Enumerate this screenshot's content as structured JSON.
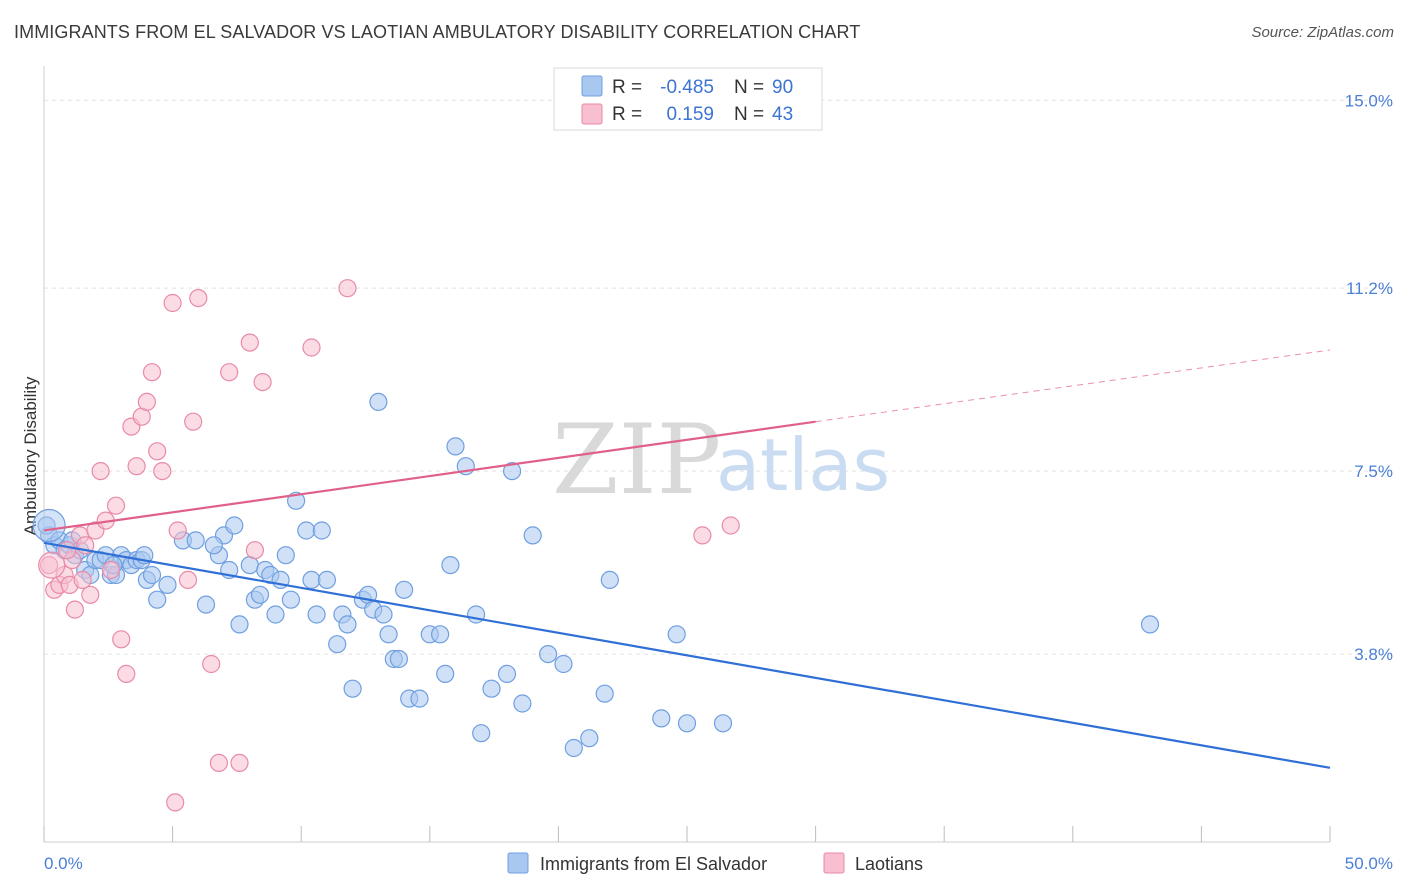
{
  "header": {
    "title": "IMMIGRANTS FROM EL SALVADOR VS LAOTIAN AMBULATORY DISABILITY CORRELATION CHART",
    "source": "Source: ZipAtlas.com"
  },
  "watermark": {
    "part1": "ZIP",
    "part2": "atlas"
  },
  "legend": {
    "rows": [
      {
        "r_label": "R =",
        "r_value": "-0.485",
        "n_label": "N =",
        "n_value": "90",
        "color": "#a9c8f0",
        "stroke": "#6f9fe0"
      },
      {
        "r_label": "R =",
        "r_value": "0.159",
        "n_label": "N =",
        "n_value": "43",
        "color": "#f7bfd0",
        "stroke": "#e98aa8"
      }
    ]
  },
  "bottom_legend": {
    "items": [
      {
        "label": "Immigrants from El Salvador",
        "color": "#a9c8f0",
        "stroke": "#6f9fe0"
      },
      {
        "label": "Laotians",
        "color": "#f7bfd0",
        "stroke": "#e98aa8"
      }
    ]
  },
  "chart_data": {
    "type": "scatter",
    "xlabel": "",
    "ylabel": "Ambulatory Disability",
    "xlim": [
      0,
      50
    ],
    "ylim": [
      0,
      15.45
    ],
    "x_tick_labels": [
      "0.0%",
      "50.0%"
    ],
    "y_ticks": [
      3.8,
      7.5,
      11.2,
      15.0
    ],
    "y_tick_labels": [
      "3.8%",
      "7.5%",
      "11.2%",
      "15.0%"
    ],
    "grid": true,
    "legend_position": "top-center",
    "series": [
      {
        "name": "Immigrants from El Salvador",
        "color": "#6f9fe0",
        "fill": "#a9c8f0",
        "points": [
          [
            0.2,
            6.2
          ],
          [
            0.4,
            6.0
          ],
          [
            0.6,
            6.1
          ],
          [
            0.8,
            5.9
          ],
          [
            1.0,
            6.0
          ],
          [
            1.2,
            5.8
          ],
          [
            1.4,
            5.9
          ],
          [
            1.6,
            5.5
          ],
          [
            1.8,
            5.4
          ],
          [
            2.0,
            5.7
          ],
          [
            2.2,
            5.7
          ],
          [
            2.4,
            5.8
          ],
          [
            2.6,
            5.4
          ],
          [
            2.8,
            5.4
          ],
          [
            3.0,
            5.8
          ],
          [
            3.2,
            5.7
          ],
          [
            3.4,
            5.6
          ],
          [
            3.6,
            5.7
          ],
          [
            3.8,
            5.7
          ],
          [
            4.0,
            5.3
          ],
          [
            4.2,
            5.4
          ],
          [
            4.4,
            4.9
          ],
          [
            4.8,
            5.2
          ],
          [
            5.4,
            6.1
          ],
          [
            5.9,
            6.1
          ],
          [
            6.3,
            4.8
          ],
          [
            6.8,
            5.8
          ],
          [
            7.0,
            6.2
          ],
          [
            7.2,
            5.5
          ],
          [
            7.4,
            6.4
          ],
          [
            7.6,
            4.4
          ],
          [
            8.0,
            5.6
          ],
          [
            8.2,
            4.9
          ],
          [
            8.4,
            5.0
          ],
          [
            8.6,
            5.5
          ],
          [
            8.8,
            5.4
          ],
          [
            9.0,
            4.6
          ],
          [
            9.2,
            5.3
          ],
          [
            9.4,
            5.8
          ],
          [
            9.6,
            4.9
          ],
          [
            9.8,
            6.9
          ],
          [
            10.2,
            6.3
          ],
          [
            10.4,
            5.3
          ],
          [
            10.6,
            4.6
          ],
          [
            10.8,
            6.3
          ],
          [
            11.0,
            5.3
          ],
          [
            11.4,
            4.0
          ],
          [
            11.6,
            4.6
          ],
          [
            11.8,
            4.4
          ],
          [
            12.0,
            3.1
          ],
          [
            12.4,
            4.9
          ],
          [
            12.6,
            5.0
          ],
          [
            12.8,
            4.7
          ],
          [
            13.0,
            8.9
          ],
          [
            13.2,
            4.6
          ],
          [
            13.4,
            4.2
          ],
          [
            13.6,
            3.7
          ],
          [
            13.8,
            3.7
          ],
          [
            14.0,
            5.1
          ],
          [
            14.2,
            2.9
          ],
          [
            14.6,
            2.9
          ],
          [
            15.0,
            4.2
          ],
          [
            15.4,
            4.2
          ],
          [
            15.6,
            3.4
          ],
          [
            15.8,
            5.6
          ],
          [
            16.0,
            8.0
          ],
          [
            16.4,
            7.6
          ],
          [
            16.8,
            4.6
          ],
          [
            17.0,
            2.2
          ],
          [
            17.4,
            3.1
          ],
          [
            18.0,
            3.4
          ],
          [
            18.2,
            7.5
          ],
          [
            18.6,
            2.8
          ],
          [
            19.0,
            6.2
          ],
          [
            19.6,
            3.8
          ],
          [
            20.2,
            3.6
          ],
          [
            20.6,
            1.9
          ],
          [
            21.2,
            2.1
          ],
          [
            21.8,
            3.0
          ],
          [
            22.0,
            5.3
          ],
          [
            24.0,
            2.5
          ],
          [
            24.6,
            4.2
          ],
          [
            25.0,
            2.4
          ],
          [
            26.4,
            2.4
          ],
          [
            43.0,
            4.4
          ],
          [
            0.1,
            6.4
          ],
          [
            1.1,
            6.1
          ],
          [
            2.7,
            5.6
          ],
          [
            3.9,
            5.8
          ],
          [
            6.6,
            6.0
          ]
        ]
      },
      {
        "name": "Laotians",
        "color": "#e98aa8",
        "fill": "#f7bfd0",
        "points": [
          [
            0.2,
            5.6
          ],
          [
            0.4,
            5.1
          ],
          [
            0.6,
            5.2
          ],
          [
            0.8,
            5.4
          ],
          [
            1.0,
            5.2
          ],
          [
            1.1,
            5.7
          ],
          [
            1.2,
            4.7
          ],
          [
            1.4,
            6.2
          ],
          [
            1.6,
            6.0
          ],
          [
            1.8,
            5.0
          ],
          [
            2.0,
            6.3
          ],
          [
            2.2,
            7.5
          ],
          [
            2.4,
            6.5
          ],
          [
            2.6,
            5.5
          ],
          [
            2.8,
            6.8
          ],
          [
            3.0,
            4.1
          ],
          [
            3.2,
            3.4
          ],
          [
            3.4,
            8.4
          ],
          [
            3.6,
            7.6
          ],
          [
            3.8,
            8.6
          ],
          [
            4.0,
            8.9
          ],
          [
            4.2,
            9.5
          ],
          [
            4.4,
            7.9
          ],
          [
            4.6,
            7.5
          ],
          [
            5.0,
            10.9
          ],
          [
            5.2,
            6.3
          ],
          [
            5.6,
            5.3
          ],
          [
            5.8,
            8.5
          ],
          [
            6.0,
            11.0
          ],
          [
            6.5,
            3.6
          ],
          [
            6.8,
            1.6
          ],
          [
            7.2,
            9.5
          ],
          [
            7.6,
            1.6
          ],
          [
            8.0,
            10.1
          ],
          [
            8.2,
            5.9
          ],
          [
            8.5,
            9.3
          ],
          [
            10.4,
            10.0
          ],
          [
            11.8,
            11.2
          ],
          [
            5.1,
            0.8
          ],
          [
            25.6,
            6.2
          ],
          [
            26.7,
            6.4
          ],
          [
            0.9,
            5.9
          ],
          [
            1.5,
            5.3
          ]
        ]
      }
    ],
    "trendlines": [
      {
        "series": "Immigrants from El Salvador",
        "x": [
          0,
          50
        ],
        "y": [
          6.05,
          1.5
        ],
        "style": "solid"
      },
      {
        "series": "Laotians",
        "x": [
          0,
          30
        ],
        "y": [
          6.3,
          8.5
        ],
        "style": "solid"
      },
      {
        "series": "Laotians",
        "x": [
          30,
          50
        ],
        "y": [
          8.5,
          9.95
        ],
        "style": "dashed"
      }
    ]
  }
}
